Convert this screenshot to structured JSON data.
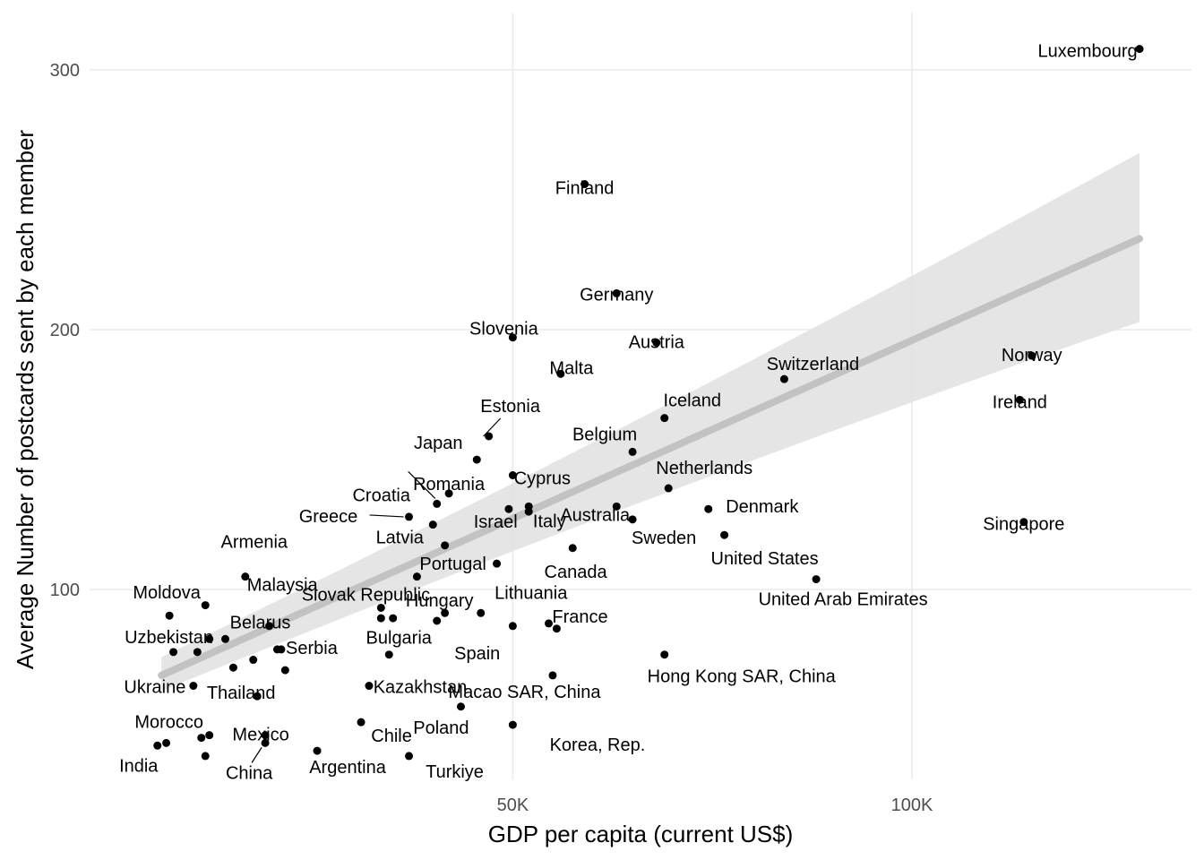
{
  "chart_data": {
    "type": "scatter",
    "xlabel": "GDP per capita (current US$)",
    "ylabel": "Average Number of postcards sent by each member",
    "x_ticks": [
      {
        "value": 50000,
        "label": "50K"
      },
      {
        "value": 100000,
        "label": "100K"
      }
    ],
    "y_ticks": [
      {
        "value": 100,
        "label": "100"
      },
      {
        "value": 200,
        "label": "200"
      },
      {
        "value": 300,
        "label": "300"
      }
    ],
    "xlim": [
      -3000,
      135000
    ],
    "ylim": [
      27,
      322
    ],
    "grid": true,
    "colors": {
      "point": "#000000",
      "band": "#e0e0e0",
      "fit": "#c2c2c2",
      "grid": "#ebebeb",
      "tick": "#4d4d4d"
    },
    "trend": {
      "x_start": 6000,
      "x_end": 128500,
      "fit_start": 67,
      "fit_end": 235,
      "ci_lo_start": 61,
      "ci_hi_start": 74,
      "ci_lo_end": 203,
      "ci_hi_end": 268
    },
    "points": [
      {
        "name": "Luxembourg",
        "x": 128500,
        "y": 308
      },
      {
        "name": "Finland",
        "x": 59000,
        "y": 256
      },
      {
        "name": "Germany",
        "x": 63000,
        "y": 214
      },
      {
        "name": "Slovenia",
        "x": 50000,
        "y": 197
      },
      {
        "name": "Austria",
        "x": 68000,
        "y": 195
      },
      {
        "name": "Malta",
        "x": 56000,
        "y": 183
      },
      {
        "name": "Switzerland",
        "x": 84000,
        "y": 181
      },
      {
        "name": "Norway",
        "x": 115000,
        "y": 190
      },
      {
        "name": "Ireland",
        "x": 113500,
        "y": 173
      },
      {
        "name": "Iceland",
        "x": 69000,
        "y": 166
      },
      {
        "name": "Estonia",
        "x": 47000,
        "y": 159
      },
      {
        "name": "Belgium",
        "x": 65000,
        "y": 153
      },
      {
        "name": "Japan",
        "x": 45500,
        "y": 150
      },
      {
        "name": "Cyprus",
        "x": 50000,
        "y": 144
      },
      {
        "name": "Netherlands",
        "x": 69500,
        "y": 139
      },
      {
        "name": "Romania",
        "x": 42000,
        "y": 137
      },
      {
        "name": "Croatia",
        "x": 40500,
        "y": 133
      },
      {
        "name": "Australia",
        "x": 63000,
        "y": 132
      },
      {
        "name": "Denmark",
        "x": 74500,
        "y": 131
      },
      {
        "name": "Israel",
        "x": 52000,
        "y": 130
      },
      {
        "name": "Greece",
        "x": 37000,
        "y": 128
      },
      {
        "name": "Sweden",
        "x": 65000,
        "y": 127
      },
      {
        "name": "Latvia",
        "x": 40000,
        "y": 125
      },
      {
        "name": "Singapore",
        "x": 114000,
        "y": 126
      },
      {
        "name": "Italy",
        "x": 57500,
        "y": 116
      },
      {
        "name": "Portugal",
        "x": 41500,
        "y": 117
      },
      {
        "name": "United States",
        "x": 76500,
        "y": 121
      },
      {
        "name": "Armenia",
        "x": 16500,
        "y": 105
      },
      {
        "name": "Slovak Republic",
        "x": 38000,
        "y": 105
      },
      {
        "name": "Canada",
        "x": 48000,
        "y": 110
      },
      {
        "name": "United Arab Emirates",
        "x": 88000,
        "y": 104
      },
      {
        "name": "Moldova",
        "x": 7000,
        "y": 90
      },
      {
        "name": "Malaysia",
        "x": 11500,
        "y": 94
      },
      {
        "name": "Belarus",
        "x": 14000,
        "y": 81
      },
      {
        "name": "Hungary",
        "x": 35000,
        "y": 89
      },
      {
        "name": "Lithuania",
        "x": 46000,
        "y": 91
      },
      {
        "name": "Uzbekistan",
        "x": 7500,
        "y": 76
      },
      {
        "name": "Bulgaria",
        "x": 34500,
        "y": 75
      },
      {
        "name": "Serbia",
        "x": 21000,
        "y": 77
      },
      {
        "name": "Spain",
        "x": 40500,
        "y": 88
      },
      {
        "name": "France",
        "x": 54500,
        "y": 87
      },
      {
        "name": "Hong Kong SAR, China",
        "x": 69000,
        "y": 75
      },
      {
        "name": "Ukraine",
        "x": 10000,
        "y": 63
      },
      {
        "name": "Thailand",
        "x": 18000,
        "y": 59
      },
      {
        "name": "Kazakhstan",
        "x": 32000,
        "y": 63
      },
      {
        "name": "Macao SAR, China",
        "x": 43500,
        "y": 55
      },
      {
        "name": "Morocco",
        "x": 12000,
        "y": 44
      },
      {
        "name": "Mexico",
        "x": 19000,
        "y": 44
      },
      {
        "name": "Chile",
        "x": 31000,
        "y": 49
      },
      {
        "name": "Poland",
        "x": 50000,
        "y": 48
      },
      {
        "name": "India",
        "x": 5500,
        "y": 40
      },
      {
        "name": "China",
        "x": 19000,
        "y": 41
      },
      {
        "name": "Argentina",
        "x": 25500,
        "y": 38
      },
      {
        "name": "Turkiye",
        "x": 37000,
        "y": 36
      },
      {
        "name": "Korea, Rep.",
        "x": 55000,
        "y": 67
      },
      {
        "name": "",
        "x": 6600,
        "y": 41
      },
      {
        "name": "",
        "x": 11500,
        "y": 36
      },
      {
        "name": "",
        "x": 12000,
        "y": 81
      },
      {
        "name": "",
        "x": 10500,
        "y": 76
      },
      {
        "name": "",
        "x": 15000,
        "y": 70
      },
      {
        "name": "",
        "x": 17500,
        "y": 73
      },
      {
        "name": "",
        "x": 19500,
        "y": 86
      },
      {
        "name": "",
        "x": 20500,
        "y": 77
      },
      {
        "name": "",
        "x": 21500,
        "y": 69
      },
      {
        "name": "",
        "x": 11000,
        "y": 43
      },
      {
        "name": "",
        "x": 33500,
        "y": 93
      },
      {
        "name": "",
        "x": 33500,
        "y": 89
      },
      {
        "name": "",
        "x": 41500,
        "y": 91
      },
      {
        "name": "",
        "x": 49500,
        "y": 131
      },
      {
        "name": "",
        "x": 52000,
        "y": 132
      },
      {
        "name": "",
        "x": 50000,
        "y": 86
      },
      {
        "name": "",
        "x": 55500,
        "y": 85
      }
    ]
  }
}
